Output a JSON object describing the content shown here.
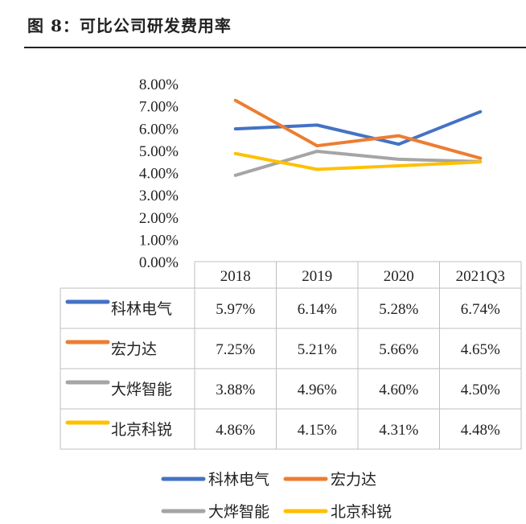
{
  "figure": {
    "label": "图",
    "number": "8",
    "separator": "：",
    "title": "可比公司研发费用率"
  },
  "chart_data": {
    "type": "line",
    "categories": [
      "2018",
      "2019",
      "2020",
      "2021Q3"
    ],
    "y_ticks": [
      "0.00%",
      "1.00%",
      "2.00%",
      "3.00%",
      "4.00%",
      "5.00%",
      "6.00%",
      "7.00%",
      "8.00%"
    ],
    "ylim": [
      0,
      8
    ],
    "y_unit": "%",
    "grid": false,
    "legend_position": "bottom",
    "data_table": true,
    "series": [
      {
        "name": "科林电气",
        "color": "#4472C4",
        "values": [
          5.97,
          6.14,
          5.28,
          6.74
        ],
        "labels": [
          "5.97%",
          "6.14%",
          "5.28%",
          "6.74%"
        ]
      },
      {
        "name": "宏力达",
        "color": "#ED7D31",
        "values": [
          7.25,
          5.21,
          5.66,
          4.65
        ],
        "labels": [
          "7.25%",
          "5.21%",
          "5.66%",
          "4.65%"
        ]
      },
      {
        "name": "大烨智能",
        "color": "#A5A5A5",
        "values": [
          3.88,
          4.96,
          4.6,
          4.5
        ],
        "labels": [
          "3.88%",
          "4.96%",
          "4.60%",
          "4.50%"
        ]
      },
      {
        "name": "北京科锐",
        "color": "#FFC000",
        "values": [
          4.86,
          4.15,
          4.31,
          4.48
        ],
        "labels": [
          "4.86%",
          "4.15%",
          "4.31%",
          "4.48%"
        ]
      }
    ]
  }
}
